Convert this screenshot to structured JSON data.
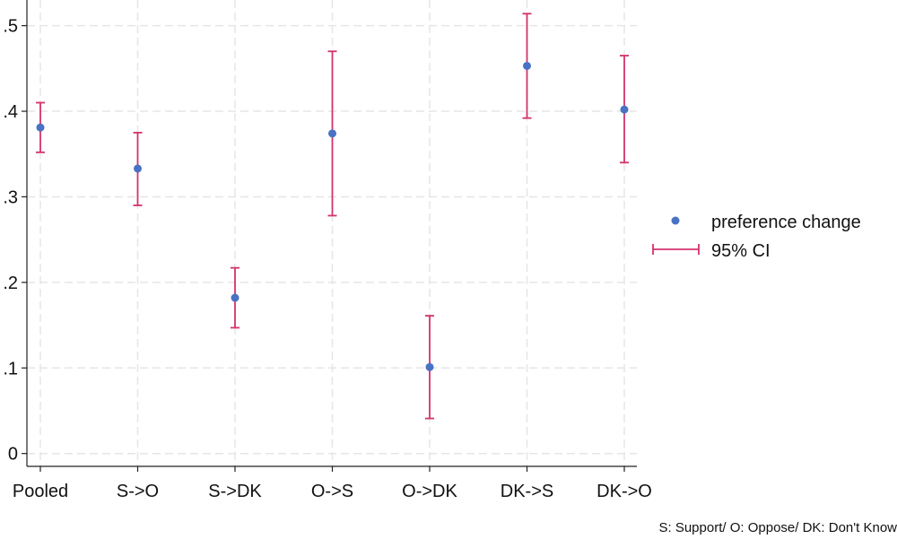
{
  "chart_data": {
    "type": "scatter",
    "categories": [
      "Pooled",
      "S->O",
      "S->DK",
      "O->S",
      "O->DK",
      "DK->S",
      "DK->O"
    ],
    "series": [
      {
        "name": "preference change",
        "values": [
          0.381,
          0.333,
          0.182,
          0.374,
          0.101,
          0.453,
          0.402
        ]
      }
    ],
    "ci_low": [
      0.352,
      0.29,
      0.147,
      0.278,
      0.041,
      0.392,
      0.34
    ],
    "ci_high": [
      0.41,
      0.375,
      0.217,
      0.47,
      0.161,
      0.514,
      0.465
    ],
    "y_ticks": [
      0,
      0.1,
      0.2,
      0.3,
      0.4,
      0.5
    ],
    "y_tick_labels": [
      "0",
      ".1",
      ".2",
      ".3",
      ".4",
      ".5"
    ],
    "ylim": [
      -0.015,
      0.53
    ],
    "grid": true,
    "legend": {
      "position": "right",
      "entries": [
        "preference change",
        "95% CI"
      ]
    },
    "note": "S: Support/ O: Oppose/ DK: Don't Know",
    "colors": {
      "point": "#4a72c4",
      "ci": "#d4326e",
      "grid": "#e6e6e6",
      "axis": "#222222"
    }
  }
}
